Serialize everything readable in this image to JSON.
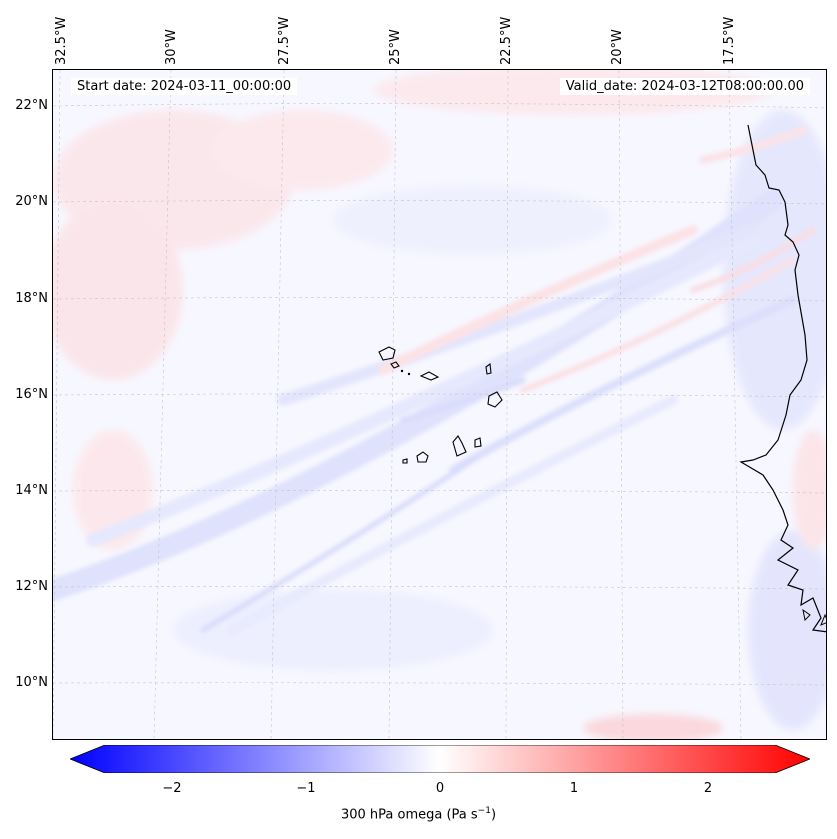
{
  "map": {
    "title_left": "Start date: 2024-03-11_00:00:00",
    "title_right": "Valid_date: 2024-03-12T08:00:00.00",
    "lon_labels": [
      "32.5°W",
      "30°W",
      "27.5°W",
      "25°W",
      "22.5°W",
      "20°W",
      "17.5°W"
    ],
    "lat_labels": [
      "22°N",
      "20°N",
      "18°N",
      "16°N",
      "14°N",
      "12°N",
      "10°N"
    ],
    "extent": {
      "lon_min": -32.8,
      "lon_max": -15.7,
      "lat_min": 8.9,
      "lat_max": 22.8
    }
  },
  "colorbar": {
    "label_prefix": "300 hPa omega (Pa s",
    "label_exp": "−1",
    "label_suffix": ")",
    "ticks": [
      "−2",
      "−1",
      "0",
      "1",
      "2"
    ],
    "tick_values": [
      -2,
      -1,
      0,
      1,
      2
    ],
    "range": [
      -2.6,
      2.6
    ],
    "colormap": "bwr",
    "low_color": "#0000ff",
    "mid_color": "#ffffff",
    "high_color": "#ff0000"
  }
}
